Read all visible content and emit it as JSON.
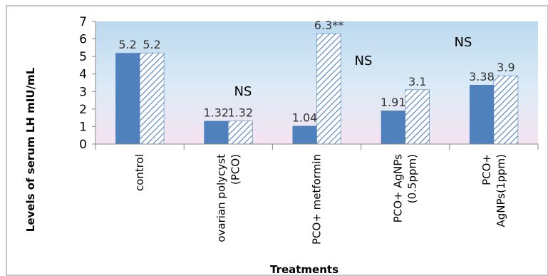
{
  "chart_data": {
    "type": "bar",
    "categories": [
      "control",
      "ovarian polycyst (PCO)",
      "PCO+ metformin",
      "PCO+ AgNPs (0.5ppm)",
      "PCO+ AgNPs(1ppm)"
    ],
    "category_lines": [
      [
        "control"
      ],
      [
        "ovarian polycyst",
        "(PCO)"
      ],
      [
        "PCO+ metformin"
      ],
      [
        "PCO+ AgNPs",
        "(0.5ppm)"
      ],
      [
        "PCO+",
        "AgNPs(1ppm)"
      ]
    ],
    "series": [
      {
        "values": [
          5.2,
          1.32,
          1.04,
          1.91,
          3.38
        ],
        "labels": [
          "5.2",
          "1.32",
          "1.04",
          "1.91",
          "3.38"
        ],
        "color": "#4f81bd",
        "fill": "solid"
      },
      {
        "values": [
          5.2,
          1.32,
          6.3,
          3.1,
          3.9
        ],
        "labels": [
          "5.2",
          "1.32",
          "6.3**",
          "3.1",
          "3.9"
        ],
        "color": "#4f81bd",
        "fill": "hatched"
      }
    ],
    "annotations": [
      "NS",
      "NS",
      "NS"
    ],
    "xlabel": "Treatments",
    "ylabel": "Levels of serum LH mIU/mL",
    "ylim": [
      0,
      7
    ],
    "yticks": [
      0,
      1,
      2,
      3,
      4,
      5,
      6,
      7
    ],
    "grid": false,
    "plot_background": "gradient light-blue to pink"
  }
}
